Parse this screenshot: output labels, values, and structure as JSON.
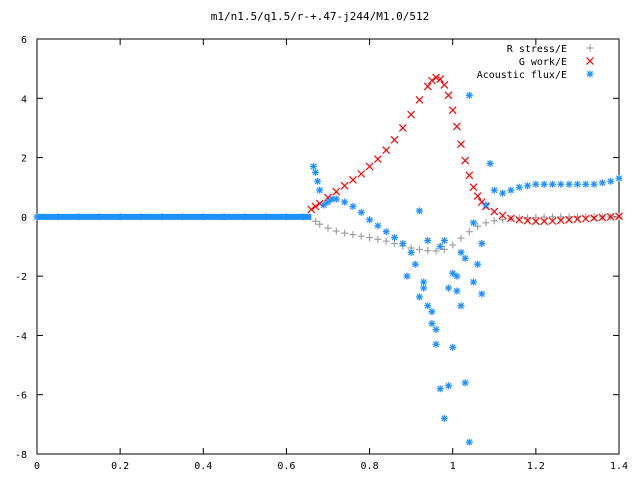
{
  "chart_data": {
    "type": "scatter",
    "title": "m1/n1.5/q1.5/r-+.47-j244/M1.0/512",
    "xlabel": "",
    "ylabel": "",
    "xlim": [
      0,
      1.4
    ],
    "ylim": [
      -8,
      6
    ],
    "xticks": [
      "0",
      "0.2",
      "0.4",
      "0.6",
      "0.8",
      "1",
      "1.2",
      "1.4"
    ],
    "yticks": [
      "6",
      "4",
      "2",
      "0",
      "-2",
      "-4",
      "-6",
      "-8"
    ],
    "grid": false,
    "legend_position": "top-right",
    "series": [
      {
        "name": "R stress/E",
        "marker": "plus",
        "color": "#a0a0a0",
        "x": [
          0.67,
          0.68,
          0.7,
          0.72,
          0.74,
          0.76,
          0.78,
          0.8,
          0.82,
          0.84,
          0.86,
          0.88,
          0.9,
          0.92,
          0.94,
          0.96,
          0.98,
          1.0,
          1.02,
          1.04,
          1.06,
          1.08,
          1.1,
          1.12,
          1.14,
          1.16,
          1.18,
          1.2,
          1.22,
          1.24,
          1.26,
          1.28,
          1.3,
          1.32,
          1.34,
          1.36,
          1.38,
          1.4
        ],
        "y": [
          -0.15,
          -0.25,
          -0.38,
          -0.48,
          -0.55,
          -0.6,
          -0.65,
          -0.7,
          -0.76,
          -0.82,
          -0.9,
          -0.98,
          -1.05,
          -1.1,
          -1.14,
          -1.15,
          -1.1,
          -0.95,
          -0.72,
          -0.5,
          -0.32,
          -0.2,
          -0.13,
          -0.09,
          -0.06,
          -0.04,
          -0.03,
          -0.02,
          -0.01,
          0.0,
          0.0,
          0.0,
          0.0,
          0.0,
          0.0,
          0.0,
          0.0,
          0.0
        ]
      },
      {
        "name": "G work/E",
        "marker": "cross",
        "color": "#ff0000",
        "x": [
          0.66,
          0.67,
          0.68,
          0.7,
          0.72,
          0.74,
          0.76,
          0.78,
          0.8,
          0.82,
          0.84,
          0.86,
          0.88,
          0.9,
          0.92,
          0.94,
          0.95,
          0.96,
          0.97,
          0.98,
          0.99,
          1.0,
          1.01,
          1.02,
          1.03,
          1.04,
          1.05,
          1.06,
          1.07,
          1.08,
          1.1,
          1.12,
          1.14,
          1.16,
          1.18,
          1.2,
          1.22,
          1.24,
          1.26,
          1.28,
          1.3,
          1.32,
          1.34,
          1.36,
          1.38,
          1.4
        ],
        "y": [
          0.25,
          0.35,
          0.45,
          0.65,
          0.85,
          1.05,
          1.25,
          1.45,
          1.7,
          1.95,
          2.25,
          2.6,
          3.0,
          3.45,
          3.95,
          4.4,
          4.6,
          4.7,
          4.65,
          4.45,
          4.1,
          3.6,
          3.05,
          2.45,
          1.9,
          1.4,
          1.0,
          0.7,
          0.5,
          0.35,
          0.18,
          0.05,
          -0.05,
          -0.1,
          -0.13,
          -0.15,
          -0.15,
          -0.14,
          -0.12,
          -0.1,
          -0.08,
          -0.06,
          -0.04,
          -0.02,
          0.0,
          0.02
        ]
      },
      {
        "name": "Acoustic flux/E",
        "marker": "star",
        "color": "#1e90ff",
        "x": [
          0.0,
          0.05,
          0.1,
          0.15,
          0.2,
          0.25,
          0.3,
          0.35,
          0.4,
          0.45,
          0.5,
          0.55,
          0.6,
          0.64,
          0.665,
          0.67,
          0.675,
          0.68,
          0.69,
          0.7,
          0.71,
          0.72,
          0.74,
          0.76,
          0.78,
          0.8,
          0.82,
          0.84,
          0.86,
          0.88,
          0.9,
          0.89,
          0.91,
          0.92,
          0.93,
          0.94,
          0.95,
          0.96,
          0.97,
          0.98,
          0.99,
          1.0,
          1.01,
          1.02,
          1.03,
          1.04,
          1.05,
          1.06,
          1.07,
          1.08,
          0.92,
          0.93,
          0.95,
          0.97,
          0.98,
          1.0,
          1.02,
          1.03,
          1.04,
          0.94,
          0.96,
          0.99,
          1.01,
          1.05,
          1.07,
          1.09,
          1.1,
          1.12,
          1.14,
          1.16,
          1.18,
          1.2,
          1.22,
          1.24,
          1.26,
          1.28,
          1.3,
          1.32,
          1.34,
          1.36,
          1.38,
          1.4
        ],
        "y": [
          0.0,
          0.0,
          0.0,
          0.0,
          0.0,
          0.0,
          0.0,
          0.0,
          0.0,
          0.0,
          0.0,
          0.0,
          0.0,
          0.0,
          1.7,
          1.5,
          1.2,
          0.9,
          0.4,
          0.5,
          0.6,
          0.6,
          0.5,
          0.35,
          0.15,
          -0.1,
          -0.3,
          -0.5,
          -0.7,
          -0.9,
          -1.2,
          -2.0,
          -1.6,
          -2.7,
          -2.2,
          -3.0,
          -3.6,
          -4.3,
          -5.8,
          -6.8,
          -2.4,
          -4.4,
          -2.5,
          -1.2,
          -5.6,
          -7.6,
          -2.2,
          -1.6,
          -0.9,
          0.4,
          0.2,
          -2.4,
          -3.2,
          -1.0,
          -0.8,
          -1.9,
          -3.0,
          -1.4,
          4.1,
          -0.8,
          -3.8,
          -5.7,
          -2.0,
          -0.2,
          -2.6,
          1.8,
          0.9,
          0.8,
          0.9,
          1.0,
          1.05,
          1.1,
          1.1,
          1.1,
          1.1,
          1.1,
          1.1,
          1.1,
          1.1,
          1.15,
          1.2,
          1.3
        ]
      }
    ]
  }
}
